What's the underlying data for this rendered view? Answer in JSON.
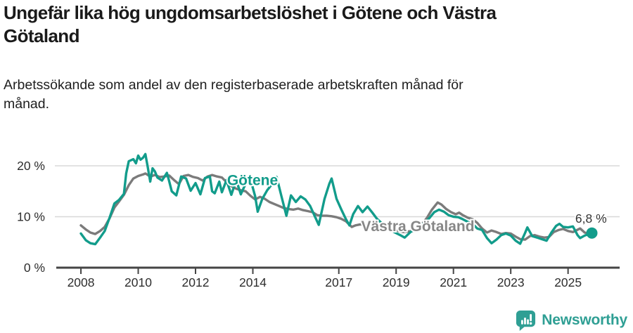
{
  "header": {
    "title": "Ungefär lika hög ungdomsarbetslöshet i Götene och Västra\nGötaland",
    "subtitle": "Arbetssökande som andel av den registerbaserade arbetskraften månad för\nmånad."
  },
  "chart_data": {
    "type": "line",
    "title": "Ungefär lika hög ungdomsarbetslöshet i Götene och Västra Götaland",
    "subtitle": "Arbetssökande som andel av den registerbaserade arbetskraften månad för månad.",
    "unit": "%",
    "legend_position": "inline-labels",
    "colors": {
      "axis": "#454545",
      "grid": "#d8d8d8",
      "text": "#2e2e2e",
      "annotation": "#333333",
      "goetene": "#129c8b",
      "vastra_gotaland": "#7b7b7b",
      "vastra_gotaland_label": "#878787"
    },
    "x_axis": {
      "ticks": [
        2008,
        2010,
        2012,
        2014,
        2017,
        2019,
        2021,
        2023,
        2025
      ],
      "range": [
        2007.14,
        2026.8
      ],
      "grid": false
    },
    "y_axis": {
      "ticks": [
        "0 %",
        "10 %",
        "20 %"
      ],
      "tick_values": [
        0,
        10,
        20
      ],
      "range": [
        0,
        24.5
      ],
      "grid": true
    },
    "series": [
      {
        "id": "vastra-gotaland-line",
        "name": "Västra Götaland",
        "color": "#7b7b7b",
        "end_dot": false,
        "points": [
          [
            2008.0,
            8.3
          ],
          [
            2008.17,
            7.5
          ],
          [
            2008.33,
            6.9
          ],
          [
            2008.5,
            6.6
          ],
          [
            2008.67,
            7.2
          ],
          [
            2008.83,
            8.0
          ],
          [
            2009.0,
            9.7
          ],
          [
            2009.17,
            11.8
          ],
          [
            2009.33,
            13.0
          ],
          [
            2009.5,
            14.3
          ],
          [
            2009.67,
            16.2
          ],
          [
            2009.83,
            17.5
          ],
          [
            2010.0,
            18.0
          ],
          [
            2010.17,
            18.3
          ],
          [
            2010.25,
            18.5
          ],
          [
            2010.42,
            17.9
          ],
          [
            2010.58,
            18.2
          ],
          [
            2010.75,
            17.8
          ],
          [
            2010.92,
            17.9
          ],
          [
            2011.08,
            18.1
          ],
          [
            2011.25,
            17.2
          ],
          [
            2011.42,
            16.4
          ],
          [
            2011.58,
            18.0
          ],
          [
            2011.75,
            18.2
          ],
          [
            2011.92,
            17.8
          ],
          [
            2012.08,
            17.6
          ],
          [
            2012.25,
            17.1
          ],
          [
            2012.42,
            17.9
          ],
          [
            2012.58,
            18.2
          ],
          [
            2012.75,
            17.9
          ],
          [
            2012.92,
            17.7
          ],
          [
            2013.08,
            16.8
          ],
          [
            2013.25,
            16.0
          ],
          [
            2013.42,
            15.5
          ],
          [
            2013.58,
            15.2
          ],
          [
            2013.75,
            15.0
          ],
          [
            2013.92,
            14.1
          ],
          [
            2014.08,
            13.4
          ],
          [
            2014.25,
            13.9
          ],
          [
            2014.42,
            13.5
          ],
          [
            2014.58,
            12.9
          ],
          [
            2014.75,
            12.5
          ],
          [
            2014.92,
            12.1
          ],
          [
            2015.08,
            11.7
          ],
          [
            2015.25,
            11.5
          ],
          [
            2015.42,
            11.4
          ],
          [
            2015.58,
            11.6
          ],
          [
            2015.75,
            11.3
          ],
          [
            2015.92,
            11.1
          ],
          [
            2016.08,
            10.9
          ],
          [
            2016.25,
            10.3
          ],
          [
            2016.42,
            10.2
          ],
          [
            2016.58,
            10.2
          ],
          [
            2016.75,
            10.1
          ],
          [
            2016.92,
            9.9
          ],
          [
            2017.08,
            9.6
          ],
          [
            2017.25,
            9.1
          ],
          [
            2017.45,
            8.0
          ],
          [
            2017.58,
            8.3
          ],
          [
            2017.75,
            8.5
          ],
          [
            2017.92,
            8.4
          ],
          [
            2018.08,
            8.2
          ],
          [
            2018.25,
            8.0
          ],
          [
            2018.42,
            7.9
          ],
          [
            2018.58,
            7.7
          ],
          [
            2018.75,
            7.6
          ],
          [
            2018.92,
            7.4
          ],
          [
            2019.08,
            7.2
          ],
          [
            2019.25,
            7.0
          ],
          [
            2019.42,
            7.1
          ],
          [
            2019.58,
            7.2
          ],
          [
            2019.75,
            7.6
          ],
          [
            2019.92,
            8.7
          ],
          [
            2020.08,
            9.8
          ],
          [
            2020.25,
            11.4
          ],
          [
            2020.45,
            12.8
          ],
          [
            2020.58,
            12.4
          ],
          [
            2020.75,
            11.5
          ],
          [
            2020.92,
            10.9
          ],
          [
            2021.08,
            10.5
          ],
          [
            2021.2,
            10.8
          ],
          [
            2021.33,
            10.3
          ],
          [
            2021.5,
            9.8
          ],
          [
            2021.67,
            9.5
          ],
          [
            2021.83,
            8.8
          ],
          [
            2022.0,
            7.7
          ],
          [
            2022.17,
            6.9
          ],
          [
            2022.33,
            7.3
          ],
          [
            2022.5,
            7.0
          ],
          [
            2022.67,
            6.6
          ],
          [
            2022.83,
            6.8
          ],
          [
            2023.0,
            6.7
          ],
          [
            2023.17,
            6.1
          ],
          [
            2023.33,
            5.6
          ],
          [
            2023.5,
            5.5
          ],
          [
            2023.67,
            6.2
          ],
          [
            2023.83,
            6.4
          ],
          [
            2024.0,
            6.1
          ],
          [
            2024.17,
            5.9
          ],
          [
            2024.33,
            6.0
          ],
          [
            2024.5,
            7.0
          ],
          [
            2024.67,
            7.4
          ],
          [
            2024.83,
            7.6
          ],
          [
            2025.0,
            7.2
          ],
          [
            2025.17,
            7.0
          ],
          [
            2025.42,
            7.7
          ],
          [
            2025.58,
            6.9
          ],
          [
            2025.83,
            6.5
          ]
        ]
      },
      {
        "id": "goetene-line",
        "name": "Götene",
        "color": "#129c8b",
        "end_dot": true,
        "points": [
          [
            2008.0,
            6.7
          ],
          [
            2008.17,
            5.4
          ],
          [
            2008.33,
            4.8
          ],
          [
            2008.5,
            4.6
          ],
          [
            2008.67,
            5.9
          ],
          [
            2008.83,
            7.2
          ],
          [
            2009.0,
            9.8
          ],
          [
            2009.17,
            12.6
          ],
          [
            2009.33,
            13.3
          ],
          [
            2009.5,
            14.5
          ],
          [
            2009.58,
            18.5
          ],
          [
            2009.67,
            20.9
          ],
          [
            2009.83,
            21.3
          ],
          [
            2009.92,
            20.5
          ],
          [
            2010.0,
            22.0
          ],
          [
            2010.08,
            21.2
          ],
          [
            2010.17,
            21.6
          ],
          [
            2010.25,
            22.3
          ],
          [
            2010.33,
            19.8
          ],
          [
            2010.42,
            16.9
          ],
          [
            2010.5,
            19.5
          ],
          [
            2010.58,
            18.9
          ],
          [
            2010.67,
            17.7
          ],
          [
            2010.83,
            17.1
          ],
          [
            2011.0,
            18.6
          ],
          [
            2011.08,
            17.0
          ],
          [
            2011.17,
            15.0
          ],
          [
            2011.33,
            14.2
          ],
          [
            2011.5,
            17.9
          ],
          [
            2011.67,
            17.5
          ],
          [
            2011.83,
            15.1
          ],
          [
            2012.0,
            16.6
          ],
          [
            2012.17,
            14.4
          ],
          [
            2012.33,
            17.6
          ],
          [
            2012.5,
            17.9
          ],
          [
            2012.58,
            15.0
          ],
          [
            2012.67,
            14.6
          ],
          [
            2012.83,
            16.9
          ],
          [
            2012.92,
            14.8
          ],
          [
            2013.08,
            17.2
          ],
          [
            2013.25,
            14.3
          ],
          [
            2013.42,
            17.2
          ],
          [
            2013.58,
            14.4
          ],
          [
            2013.75,
            16.5
          ],
          [
            2013.92,
            17.3
          ],
          [
            2014.08,
            14.0
          ],
          [
            2014.17,
            11.0
          ],
          [
            2014.33,
            13.5
          ],
          [
            2014.5,
            15.2
          ],
          [
            2014.67,
            16.4
          ],
          [
            2014.83,
            17.8
          ],
          [
            2015.0,
            14.0
          ],
          [
            2015.17,
            10.2
          ],
          [
            2015.33,
            14.2
          ],
          [
            2015.5,
            12.9
          ],
          [
            2015.67,
            14.0
          ],
          [
            2015.83,
            13.4
          ],
          [
            2016.0,
            12.1
          ],
          [
            2016.17,
            10.0
          ],
          [
            2016.3,
            8.4
          ],
          [
            2016.5,
            13.5
          ],
          [
            2016.67,
            16.5
          ],
          [
            2016.75,
            17.5
          ],
          [
            2016.92,
            13.5
          ],
          [
            2017.08,
            11.5
          ],
          [
            2017.25,
            9.5
          ],
          [
            2017.37,
            8.3
          ],
          [
            2017.5,
            10.5
          ],
          [
            2017.67,
            12.1
          ],
          [
            2017.83,
            10.9
          ],
          [
            2018.0,
            12.0
          ],
          [
            2018.17,
            10.8
          ],
          [
            2018.33,
            9.6
          ],
          [
            2018.58,
            8.3
          ],
          [
            2018.83,
            7.3
          ],
          [
            2019.0,
            6.8
          ],
          [
            2019.17,
            6.3
          ],
          [
            2019.3,
            5.9
          ],
          [
            2019.5,
            7.0
          ],
          [
            2019.67,
            7.6
          ],
          [
            2019.83,
            8.3
          ],
          [
            2020.0,
            8.8
          ],
          [
            2020.17,
            9.8
          ],
          [
            2020.33,
            10.9
          ],
          [
            2020.5,
            11.4
          ],
          [
            2020.67,
            11.0
          ],
          [
            2020.83,
            10.3
          ],
          [
            2021.0,
            10.0
          ],
          [
            2021.17,
            9.9
          ],
          [
            2021.33,
            9.5
          ],
          [
            2021.5,
            9.0
          ],
          [
            2021.67,
            8.6
          ],
          [
            2021.83,
            7.7
          ],
          [
            2022.0,
            7.4
          ],
          [
            2022.17,
            5.8
          ],
          [
            2022.33,
            4.8
          ],
          [
            2022.5,
            5.5
          ],
          [
            2022.67,
            6.4
          ],
          [
            2022.83,
            6.7
          ],
          [
            2023.0,
            6.3
          ],
          [
            2023.17,
            5.3
          ],
          [
            2023.33,
            4.7
          ],
          [
            2023.5,
            6.8
          ],
          [
            2023.58,
            7.9
          ],
          [
            2023.75,
            6.2
          ],
          [
            2023.92,
            5.9
          ],
          [
            2024.08,
            5.6
          ],
          [
            2024.25,
            5.3
          ],
          [
            2024.42,
            6.9
          ],
          [
            2024.58,
            8.2
          ],
          [
            2024.7,
            8.6
          ],
          [
            2024.83,
            8.0
          ],
          [
            2025.0,
            7.9
          ],
          [
            2025.17,
            8.1
          ],
          [
            2025.33,
            6.4
          ],
          [
            2025.42,
            5.8
          ],
          [
            2025.58,
            6.3
          ],
          [
            2025.83,
            6.8
          ]
        ]
      }
    ],
    "series_labels": [
      {
        "id": "goetene-series-label",
        "text": "Götene",
        "color": "#129c8b",
        "x": 2013.1,
        "y": 16.2,
        "anchor": "start"
      },
      {
        "id": "vastra-gotaland-series-label",
        "text": "Västra Götaland",
        "color": "#878787",
        "x": 2017.78,
        "y": 7.2,
        "anchor": "start"
      }
    ],
    "annotation": {
      "text": "6,8 %",
      "x": 2026.35,
      "y": 8.85,
      "anchor": "end",
      "value": 6.8
    }
  },
  "footer": {
    "brand": "Newsworthy",
    "brand_color": "#2f9f94",
    "logo_icon": "newsworthy-speech-bubble-bar-chart-icon"
  }
}
